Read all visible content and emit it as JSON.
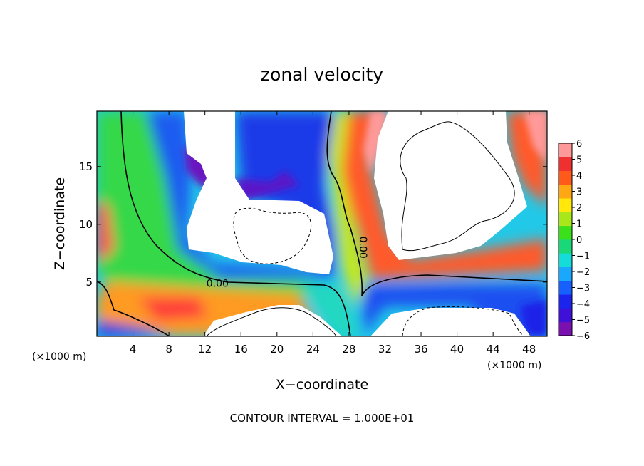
{
  "chart_data": {
    "type": "heatmap",
    "title": "zonal velocity",
    "xlabel": "X−coordinate",
    "ylabel": "Z−coordinate",
    "x_unit_left": "(×1000 m)",
    "x_unit_right": "(×1000 m)",
    "footer": "CONTOUR INTERVAL = 1.000E+01",
    "xlim": [
      0,
      50
    ],
    "ylim": [
      0.3,
      19.8
    ],
    "x_ticks": [
      4,
      8,
      12,
      16,
      20,
      24,
      28,
      32,
      36,
      40,
      44,
      48
    ],
    "x_tick_labels": [
      "4",
      "8",
      "12",
      "16",
      "20",
      "24",
      "28",
      "32",
      "36",
      "40",
      "44",
      "48"
    ],
    "y_ticks": [
      5,
      10,
      15
    ],
    "y_tick_labels": [
      "5",
      "10",
      "15"
    ],
    "colorbar": {
      "min": -6,
      "max": 6,
      "ticks": [
        6,
        5,
        4,
        3,
        2,
        1,
        0,
        -1,
        -2,
        -3,
        -4,
        -5,
        -6
      ],
      "tick_labels": [
        "6",
        "5",
        "4",
        "3",
        "2",
        "1",
        "0",
        "−1",
        "−2",
        "−3",
        "−4",
        "−5",
        "−6"
      ],
      "colors": [
        "#7a10b0",
        "#3e10d8",
        "#1a24ec",
        "#1660ff",
        "#1aa8ff",
        "#14dcd8",
        "#18d878",
        "#3ae01a",
        "#a8e81a",
        "#ffe80a",
        "#ffa814",
        "#ff5a1a",
        "#f03030",
        "#ff9898"
      ]
    },
    "contour_labels": [
      {
        "text": "0.00",
        "x": 13.4,
        "z": 4.6,
        "angle": 0
      },
      {
        "text": "0.00",
        "x": 29.2,
        "z": 8.0,
        "angle": 90
      }
    ],
    "grid": false
  }
}
